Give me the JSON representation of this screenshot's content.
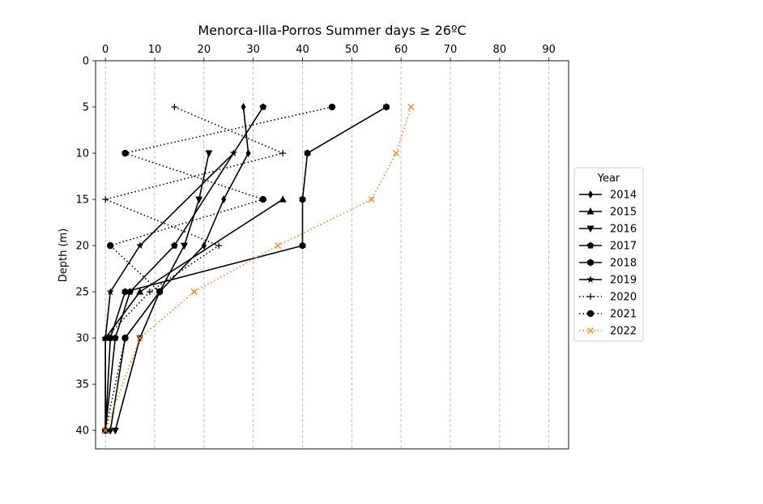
{
  "chart_data": {
    "type": "line",
    "title": "Menorca-Illa-Porros Summer days ≥ 26ºC",
    "xlabel": "",
    "ylabel": "Depth (m)",
    "xlim": [
      -2,
      94
    ],
    "ylim": [
      42,
      0
    ],
    "x_axis_position": "top",
    "y_inverted": true,
    "x_ticks": [
      0,
      10,
      20,
      30,
      40,
      50,
      60,
      70,
      80,
      90
    ],
    "y_ticks": [
      0,
      5,
      10,
      15,
      20,
      25,
      30,
      35,
      40
    ],
    "x_grid": true,
    "legend": {
      "title": "Year",
      "placement": "outside-right"
    },
    "series": [
      {
        "name": "2014",
        "color": "#000000",
        "linestyle": "solid",
        "marker": "thin-diamond",
        "points": [
          [
            28,
            5
          ],
          [
            29,
            10
          ],
          [
            24,
            15
          ],
          [
            20,
            20
          ],
          [
            11,
            25
          ],
          [
            4,
            30
          ],
          [
            1,
            40
          ]
        ]
      },
      {
        "name": "2015",
        "color": "#000000",
        "linestyle": "solid",
        "marker": "triangle-up",
        "points": [
          [
            36,
            15
          ],
          [
            7,
            25
          ],
          [
            0,
            30
          ],
          [
            0,
            40
          ]
        ]
      },
      {
        "name": "2016",
        "color": "#000000",
        "linestyle": "solid",
        "marker": "triangle-down",
        "points": [
          [
            21,
            10
          ],
          [
            19,
            15
          ],
          [
            16,
            20
          ],
          [
            11,
            25
          ],
          [
            7,
            30
          ],
          [
            2,
            40
          ]
        ]
      },
      {
        "name": "2017",
        "color": "#000000",
        "linestyle": "solid",
        "marker": "pentagon",
        "points": [
          [
            32,
            5
          ],
          [
            14,
            20
          ],
          [
            5,
            25
          ],
          [
            2,
            30
          ],
          [
            0,
            40
          ]
        ]
      },
      {
        "name": "2018",
        "color": "#000000",
        "linestyle": "solid",
        "marker": "hexagon",
        "points": [
          [
            57,
            5
          ],
          [
            41,
            10
          ],
          [
            40,
            15
          ],
          [
            40,
            20
          ],
          [
            4,
            25
          ],
          [
            1,
            30
          ],
          [
            0,
            40
          ]
        ]
      },
      {
        "name": "2019",
        "color": "#000000",
        "linestyle": "solid",
        "marker": "star",
        "points": [
          [
            26,
            10
          ],
          [
            7,
            20
          ],
          [
            1,
            25
          ],
          [
            0,
            30
          ],
          [
            0,
            40
          ]
        ]
      },
      {
        "name": "2020",
        "color": "#000000",
        "linestyle": "dotted",
        "marker": "plus",
        "points": [
          [
            14,
            5
          ],
          [
            36,
            10
          ],
          [
            0,
            15
          ],
          [
            23,
            20
          ],
          [
            9,
            25
          ],
          [
            0,
            30
          ],
          [
            0,
            40
          ]
        ]
      },
      {
        "name": "2021",
        "color": "#000000",
        "linestyle": "dotted",
        "marker": "circle",
        "points": [
          [
            46,
            5
          ],
          [
            4,
            10
          ],
          [
            32,
            15
          ],
          [
            1,
            20
          ],
          [
            11,
            25
          ],
          [
            4,
            30
          ],
          [
            0,
            40
          ]
        ]
      },
      {
        "name": "2022",
        "color": "#ff7f0e",
        "linestyle": "dotted",
        "marker": "x",
        "points": [
          [
            62,
            5
          ],
          [
            59,
            10
          ],
          [
            54,
            15
          ],
          [
            35,
            20
          ],
          [
            18,
            25
          ],
          [
            7,
            30
          ],
          [
            0,
            40
          ]
        ]
      }
    ]
  }
}
